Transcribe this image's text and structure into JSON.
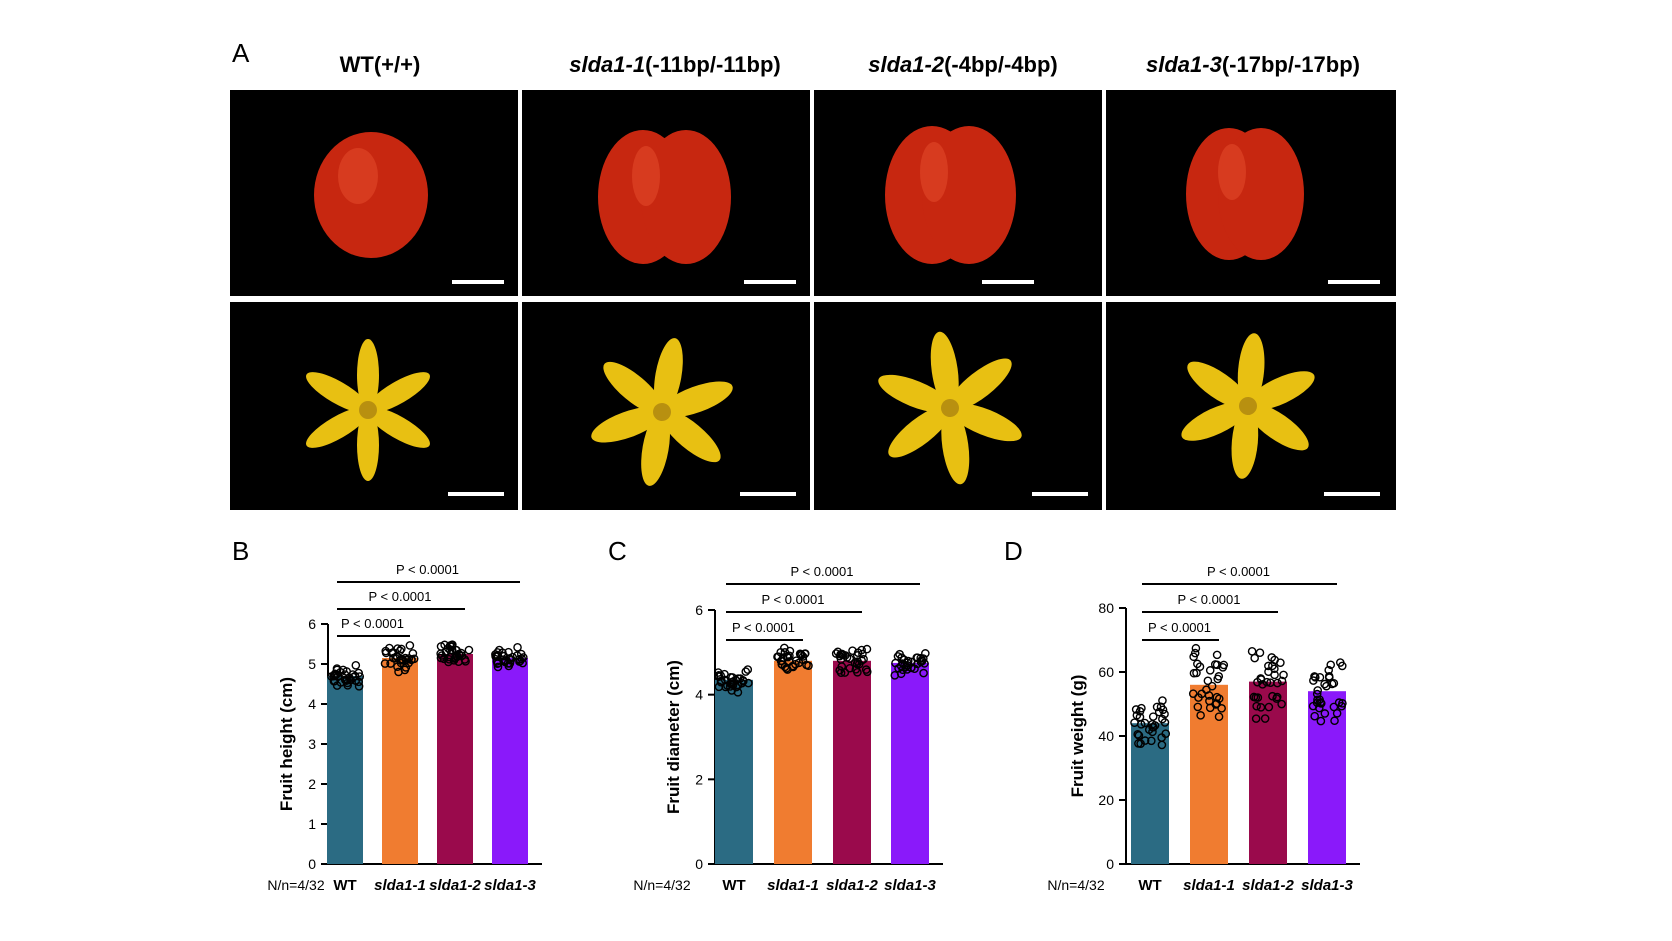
{
  "panel_a": {
    "letter": "A",
    "columns": [
      {
        "gene": "",
        "genotype": "WT(+/+)"
      },
      {
        "gene": "slda1-1",
        "genotype": "(-11bp/-11bp)"
      },
      {
        "gene": "slda1-2",
        "genotype": "(-4bp/-4bp)"
      },
      {
        "gene": "slda1-3",
        "genotype": "(-17bp/-17bp)"
      }
    ],
    "rows": [
      "fruit",
      "flower"
    ],
    "colors": {
      "fruit": "#d9301a",
      "flower": "#e8c012",
      "background": "#000000"
    }
  },
  "colors": {
    "WT": "#2b6b83",
    "slda1-1": "#f07c30",
    "slda1-2": "#9a0a4c",
    "slda1-3": "#8a19fa"
  },
  "chart_data": [
    {
      "letter": "B",
      "type": "bar",
      "ylabel": "Fruit height (cm)",
      "categories": [
        "WT",
        "slda1-1",
        "slda1-2",
        "slda1-3"
      ],
      "values": [
        4.7,
        5.15,
        5.25,
        5.15
      ],
      "ylim": [
        0,
        6
      ],
      "yticks": [
        0,
        1,
        2,
        3,
        4,
        5,
        6
      ],
      "sample_label": "N/n=4/32",
      "spread": [
        0.3,
        0.42,
        0.3,
        0.3
      ],
      "comparisons": [
        {
          "from": "WT",
          "to": "slda1-1",
          "label": "P < 0.0001"
        },
        {
          "from": "WT",
          "to": "slda1-2",
          "label": "P < 0.0001"
        },
        {
          "from": "WT",
          "to": "slda1-3",
          "label": "P < 0.0001"
        }
      ]
    },
    {
      "letter": "C",
      "type": "bar",
      "ylabel": "Fruit diameter (cm)",
      "categories": [
        "WT",
        "slda1-1",
        "slda1-2",
        "slda1-3"
      ],
      "values": [
        4.35,
        4.8,
        4.8,
        4.75
      ],
      "ylim": [
        0,
        6
      ],
      "yticks": [
        0,
        2,
        4,
        6
      ],
      "sample_label": "N/n=4/32",
      "spread": [
        0.3,
        0.35,
        0.42,
        0.35
      ],
      "comparisons": [
        {
          "from": "WT",
          "to": "slda1-1",
          "label": "P < 0.0001"
        },
        {
          "from": "WT",
          "to": "slda1-2",
          "label": "P < 0.0001"
        },
        {
          "from": "WT",
          "to": "slda1-3",
          "label": "P < 0.0001"
        }
      ]
    },
    {
      "letter": "D",
      "type": "bar",
      "ylabel": "Fruit weight (g)",
      "categories": [
        "WT",
        "slda1-1",
        "slda1-2",
        "slda1-3"
      ],
      "values": [
        44,
        56,
        57,
        54
      ],
      "ylim": [
        0,
        80
      ],
      "yticks": [
        0,
        20,
        40,
        60,
        80
      ],
      "sample_label": "N/n=4/32",
      "spread": [
        9,
        14,
        14,
        11
      ],
      "comparisons": [
        {
          "from": "WT",
          "to": "slda1-1",
          "label": "P < 0.0001"
        },
        {
          "from": "WT",
          "to": "slda1-2",
          "label": "P < 0.0001"
        },
        {
          "from": "WT",
          "to": "slda1-3",
          "label": "P < 0.0001"
        }
      ]
    }
  ]
}
